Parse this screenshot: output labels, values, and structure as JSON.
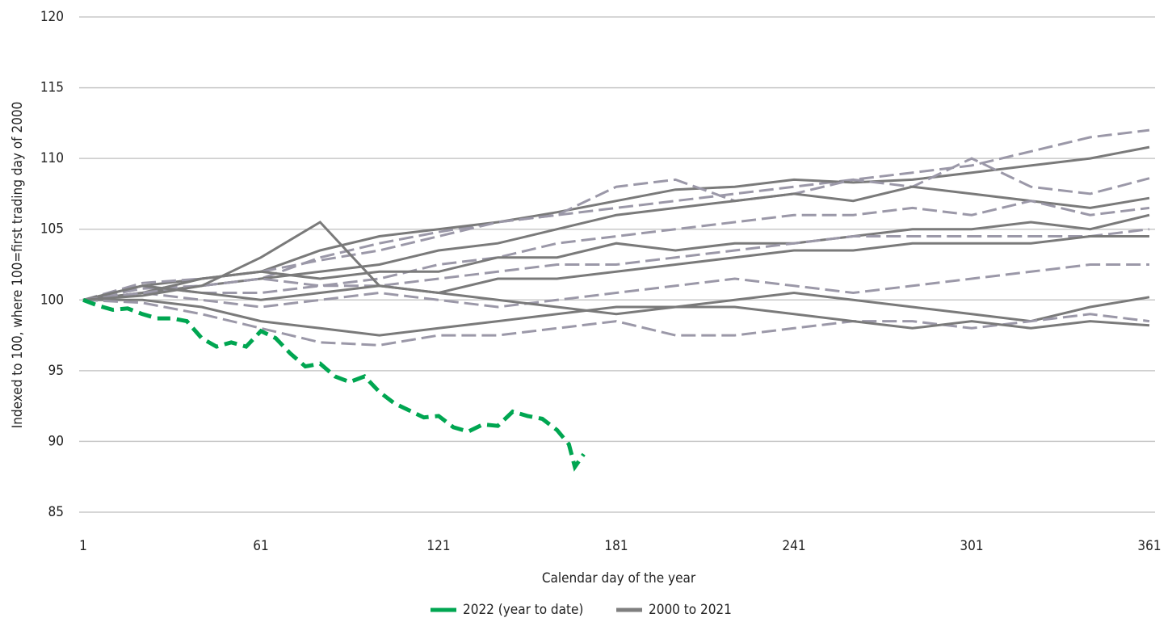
{
  "chart_data": {
    "type": "line",
    "y_label": "Indexed to 100, where 100=first trading day of 2000",
    "x_label": "Calendar day of the year",
    "xlim": [
      1,
      361
    ],
    "xticks": [
      1,
      61,
      121,
      181,
      241,
      301,
      361
    ],
    "ylim": [
      85,
      120
    ],
    "yticks": [
      85,
      90,
      95,
      100,
      105,
      110,
      115,
      120
    ],
    "grid": true,
    "legend": "bottom",
    "series": [
      {
        "name": "2022 (year to date)",
        "color": "#00a651",
        "x": [
          1,
          6,
          11,
          16,
          21,
          26,
          31,
          36,
          41,
          46,
          51,
          56,
          61,
          66,
          71,
          76,
          81,
          86,
          91,
          96,
          101,
          106,
          111,
          116,
          121,
          126,
          131,
          136,
          141,
          146,
          151,
          156,
          161,
          165,
          167,
          170
        ],
        "values": [
          100,
          99.6,
          99.3,
          99.4,
          99,
          98.7,
          98.7,
          98.5,
          97.3,
          96.7,
          97,
          96.7,
          97.8,
          97.3,
          96.2,
          95.3,
          95.5,
          94.6,
          94.2,
          94.6,
          93.5,
          92.7,
          92.2,
          91.7,
          91.8,
          91,
          90.7,
          91.2,
          91.1,
          92.1,
          91.8,
          91.6,
          90.8,
          89.8,
          88.2,
          89.1
        ]
      },
      {
        "name": "2000 to 2021",
        "color": "#7f7f7f",
        "colors": [
          "#9b98a8",
          "#7a7a7a"
        ],
        "x": [
          1,
          21,
          41,
          61,
          81,
          101,
          121,
          141,
          161,
          181,
          201,
          221,
          241,
          261,
          281,
          301,
          321,
          341,
          361
        ],
        "lines": [
          [
            100,
            100.8,
            101,
            101.5,
            103,
            104,
            104.8,
            105.5,
            106,
            106.5,
            107,
            107.5,
            108,
            108.5,
            109,
            109.5,
            110.5,
            111.5,
            112
          ],
          [
            100,
            101,
            101.5,
            102,
            103.5,
            104.5,
            105,
            105.5,
            106.2,
            107,
            107.8,
            108,
            108.5,
            108.3,
            108.5,
            109,
            109.5,
            110,
            110.8
          ],
          [
            100,
            101.2,
            101.5,
            102,
            102.8,
            103.5,
            104.5,
            105.5,
            106,
            108,
            108.5,
            107,
            107.5,
            108.5,
            108,
            110,
            108,
            107.5,
            108.6
          ],
          [
            100,
            100.5,
            101,
            101.5,
            102,
            102.5,
            103.5,
            104,
            105,
            106,
            106.5,
            107,
            107.5,
            107,
            108,
            107.5,
            107,
            106.5,
            107.2
          ],
          [
            100,
            101,
            100.5,
            100.5,
            101,
            101.5,
            102.5,
            103,
            104,
            104.5,
            105,
            105.5,
            106,
            106,
            106.5,
            106,
            107,
            106,
            106.5
          ],
          [
            100,
            100.5,
            101.5,
            102,
            101.5,
            102,
            102,
            103,
            103,
            104,
            103.5,
            104,
            104,
            104.5,
            105,
            105,
            105.5,
            105,
            106
          ],
          [
            100,
            100.5,
            101,
            101.5,
            101,
            101,
            101.5,
            102,
            102.5,
            102.5,
            103,
            103.5,
            104,
            104.5,
            104.5,
            104.5,
            104.5,
            104.5,
            105
          ],
          [
            100,
            101,
            100.5,
            100,
            100.5,
            101,
            100.5,
            101.5,
            101.5,
            102,
            102.5,
            103,
            103.5,
            103.5,
            104,
            104,
            104,
            104.5,
            104.5
          ],
          [
            100,
            100.5,
            100,
            99.5,
            100,
            100.5,
            100,
            99.5,
            100,
            100.5,
            101,
            101.5,
            101,
            100.5,
            101,
            101.5,
            102,
            102.5,
            102.5
          ],
          [
            100,
            100,
            99.5,
            98.5,
            98,
            97.5,
            98,
            98.5,
            99,
            99.5,
            99.5,
            100,
            100.5,
            100,
            99.5,
            99,
            98.5,
            99.5,
            100.2
          ],
          [
            100,
            99.8,
            99,
            98,
            97,
            96.8,
            97.5,
            97.5,
            98,
            98.5,
            97.5,
            97.5,
            98,
            98.5,
            98.5,
            98,
            98.5,
            99,
            98.5
          ],
          [
            100,
            100.3,
            101,
            103,
            105.5,
            101,
            100.5,
            100,
            99.5,
            99,
            99.5,
            99.5,
            99,
            98.5,
            98,
            98.5,
            98,
            98.5,
            98.2
          ]
        ]
      }
    ]
  }
}
